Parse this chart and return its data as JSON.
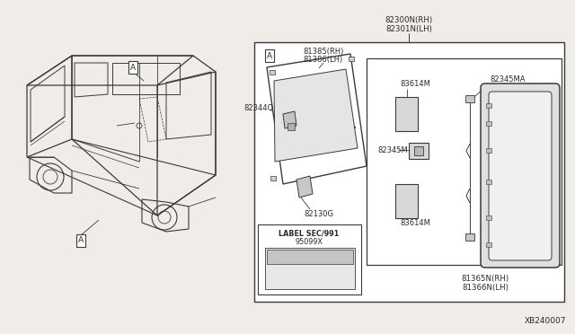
{
  "bg_color": "#f0ede8",
  "diagram_id": "XB240007",
  "labels": {
    "top_right_1": "82300N(RH)",
    "top_right_2": "82301N(LH)",
    "door_panel_1": "81385(RH)",
    "door_panel_2": "81386(LH)",
    "part_82344Q": "82344Q",
    "part_82130G": "82130G",
    "label_sec": "LABEL SEC/991",
    "part_95099X": "95099X",
    "part_83614M_top": "83614M",
    "part_83614M_bot": "83614M",
    "part_82345MA": "82345MA",
    "part_82345M": "82345M",
    "bottom_1": "81365N(RH)",
    "bottom_2": "81366N(LH)",
    "callout_A": "A"
  },
  "colors": {
    "line": "#3a3a3a",
    "text": "#2a2a2a",
    "white": "#ffffff",
    "bg": "#f0ede8",
    "light_gray": "#c8c8c8"
  }
}
